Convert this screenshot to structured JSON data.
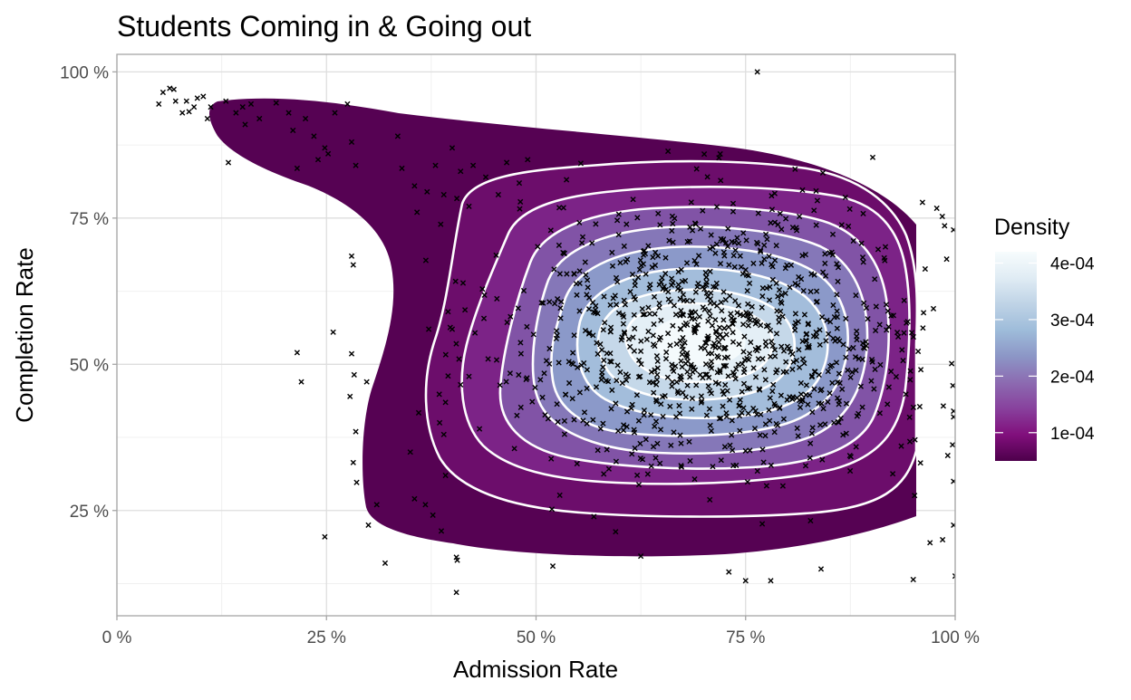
{
  "chart_data": {
    "type": "scatter",
    "subtype": "2d-density-filled-contour",
    "title": "Students Coming in & Going out",
    "xlabel": "Admission Rate",
    "ylabel": "Completion Rate",
    "xlim": [
      0,
      100
    ],
    "ylim": [
      7,
      103
    ],
    "x_ticks": [
      0,
      25,
      50,
      75,
      100
    ],
    "x_tick_labels": [
      "0 %",
      "25 %",
      "50 %",
      "75 %",
      "100 %"
    ],
    "y_ticks": [
      25,
      50,
      75,
      100
    ],
    "y_tick_labels": [
      "25 %",
      "50 %",
      "75 %",
      "100 %"
    ],
    "grid": true,
    "point_marker": "x",
    "point_color": "#000000",
    "density_peak": {
      "x": 72,
      "y": 55
    },
    "density_levels": [
      5e-05,
      0.0001,
      0.00015,
      0.0002,
      0.00025,
      0.0003,
      0.00035,
      0.0004
    ],
    "legend": {
      "title": "Density",
      "placement": "right",
      "range": [
        5e-05,
        0.00042
      ],
      "breaks": [
        0.0001,
        0.0002,
        0.0003,
        0.0004
      ],
      "labels": [
        "1e-04",
        "2e-04",
        "3e-04",
        "4e-04"
      ],
      "colors": [
        "#4d004b",
        "#810f7c",
        "#88419d",
        "#8c6bb1",
        "#8c96c6",
        "#9ebcda",
        "#bfd3e6",
        "#e0ecf4",
        "#f7fcfd"
      ]
    },
    "points_manual": [
      [
        5,
        94.5
      ],
      [
        5.5,
        96.5
      ],
      [
        6.3,
        97.2
      ],
      [
        6.8,
        97
      ],
      [
        7,
        95
      ],
      [
        7.8,
        93
      ],
      [
        8.3,
        95
      ],
      [
        8.6,
        93.2
      ],
      [
        9.2,
        94
      ],
      [
        9.6,
        95.5
      ],
      [
        10.3,
        95.8
      ],
      [
        10.8,
        92
      ],
      [
        11.2,
        94
      ],
      [
        13,
        95
      ],
      [
        13.3,
        84.5
      ],
      [
        14.2,
        93
      ],
      [
        15,
        94
      ],
      [
        15.3,
        91
      ],
      [
        16,
        94.5
      ],
      [
        17,
        92
      ],
      [
        19,
        94.7
      ],
      [
        20.5,
        93
      ],
      [
        21,
        90
      ],
      [
        21.5,
        83.5
      ],
      [
        22.5,
        92
      ],
      [
        23.5,
        89
      ],
      [
        24,
        85
      ],
      [
        24.8,
        87
      ],
      [
        25.2,
        86
      ],
      [
        26,
        93
      ],
      [
        27.5,
        94.5
      ],
      [
        28,
        88
      ],
      [
        28.5,
        84
      ],
      [
        28,
        68.5
      ],
      [
        28.2,
        67
      ],
      [
        21.5,
        52
      ],
      [
        22,
        47
      ],
      [
        25.8,
        55.5
      ],
      [
        28,
        51.8
      ],
      [
        28.3,
        48.2
      ],
      [
        27.8,
        44.5
      ],
      [
        28.5,
        38.5
      ],
      [
        29.8,
        47
      ],
      [
        28.2,
        33.2
      ],
      [
        28.6,
        29.8
      ],
      [
        30,
        22.5
      ],
      [
        24.8,
        20.5
      ],
      [
        31,
        26
      ],
      [
        32,
        16
      ],
      [
        40.5,
        17
      ],
      [
        40.6,
        16.5
      ],
      [
        40.5,
        11
      ],
      [
        76.4,
        100
      ],
      [
        52,
        15.5
      ],
      [
        62.5,
        17.2
      ],
      [
        73,
        14.5
      ],
      [
        75,
        13
      ],
      [
        78,
        13
      ],
      [
        84,
        15
      ],
      [
        95,
        13.2
      ],
      [
        100,
        13.8
      ],
      [
        97,
        19.5
      ],
      [
        98.5,
        20
      ],
      [
        99.8,
        22.5
      ],
      [
        99.8,
        30
      ],
      [
        99.8,
        42
      ],
      [
        99.8,
        41
      ],
      [
        99.8,
        73
      ],
      [
        33.5,
        89
      ],
      [
        34,
        83.5
      ],
      [
        35.5,
        80.5
      ],
      [
        35.8,
        76
      ],
      [
        37,
        79.5
      ],
      [
        38,
        84
      ],
      [
        39,
        79
      ],
      [
        40,
        87
      ],
      [
        41,
        83
      ],
      [
        42,
        77
      ],
      [
        42.5,
        84
      ],
      [
        44,
        82
      ],
      [
        45.5,
        79
      ],
      [
        46.5,
        84.5
      ],
      [
        48,
        81
      ],
      [
        49,
        85
      ],
      [
        39.5,
        59
      ],
      [
        40,
        56
      ],
      [
        41,
        46.5
      ],
      [
        39.5,
        48
      ],
      [
        39.2,
        43.5
      ],
      [
        39,
        38
      ],
      [
        38.5,
        40
      ],
      [
        39.2,
        31
      ],
      [
        37.7,
        24.2
      ],
      [
        38.7,
        21.5
      ],
      [
        37.2,
        56
      ],
      [
        36,
        41.7
      ],
      [
        35,
        35
      ],
      [
        35.5,
        27
      ],
      [
        36.8,
        26
      ]
    ],
    "generated_points": {
      "count": 1000,
      "center_x": 72,
      "center_y": 55,
      "sd_x": 13,
      "sd_y": 12,
      "x_range": [
        36,
        100
      ],
      "y_range": [
        17,
        87
      ]
    }
  }
}
